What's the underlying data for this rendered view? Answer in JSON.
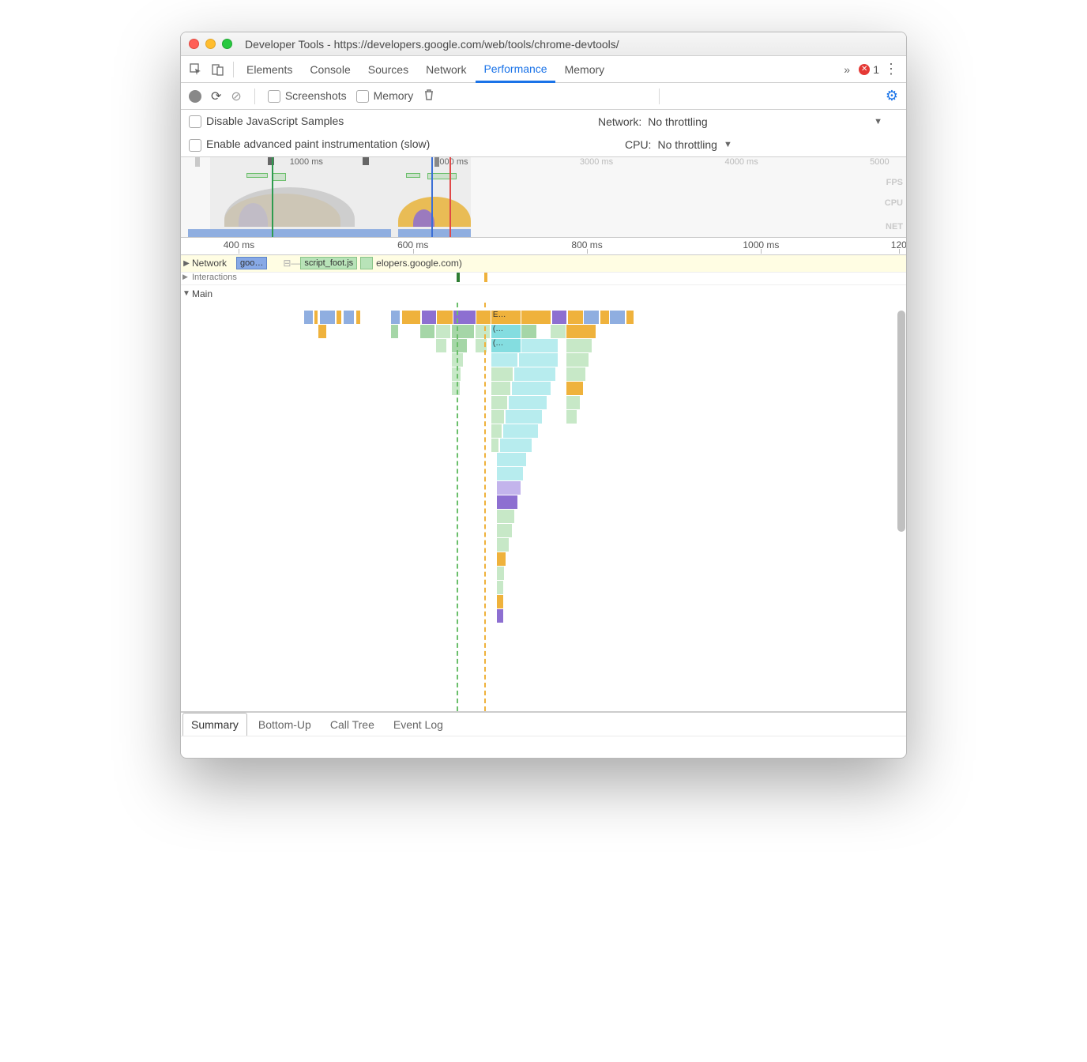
{
  "window": {
    "title": "Developer Tools - https://developers.google.com/web/tools/chrome-devtools/",
    "traffic_colors": {
      "close": "#ff5f57",
      "min": "#ffbd2e",
      "max": "#28c940"
    }
  },
  "topTabs": {
    "items": [
      "Elements",
      "Console",
      "Sources",
      "Network",
      "Performance",
      "Memory"
    ],
    "active": "Performance",
    "overflowGlyph": "»",
    "errorCount": "1",
    "errorIcon": "✕"
  },
  "perfToolbar": {
    "screenshotsLabel": "Screenshots",
    "memoryLabel": "Memory"
  },
  "settings": {
    "disableJs": "Disable JavaScript Samples",
    "enablePaint": "Enable advanced paint instrumentation (slow)",
    "networkLabel": "Network:",
    "networkValue": "No throttling",
    "cpuLabel": "CPU:",
    "cpuValue": "No throttling"
  },
  "overview": {
    "ticks": [
      {
        "label": "1000 ms",
        "pxPct": 15
      },
      {
        "label": "2000 ms",
        "pxPct": 35
      },
      {
        "label": "3000 ms",
        "pxPct": 55
      },
      {
        "label": "4000 ms",
        "pxPct": 75
      },
      {
        "label": "5000",
        "pxPct": 95
      }
    ],
    "handles": [
      2,
      12,
      25,
      35
    ],
    "rightLabels": [
      {
        "text": "FPS",
        "topPct": 26
      },
      {
        "text": "CPU",
        "topPct": 52
      },
      {
        "text": "NET",
        "topPct": 82
      }
    ],
    "netbars": [
      {
        "leftPct": 1,
        "widthPct": 28
      },
      {
        "leftPct": 30,
        "widthPct": 10
      }
    ],
    "vline_green": 12.5,
    "vline_blue": 34.5,
    "vline_red": 37,
    "dim": [
      {
        "leftPct": 0,
        "widthPct": 4
      },
      {
        "leftPct": 40,
        "widthPct": 60
      }
    ],
    "waves": [
      {
        "leftPct": 6,
        "widthPct": 16,
        "color": "#e8b33a",
        "heightPct": 42,
        "bottomPct": 12
      },
      {
        "leftPct": 8,
        "widthPct": 4,
        "color": "#8d6fd1",
        "heightPct": 30,
        "bottomPct": 12
      },
      {
        "leftPct": 30,
        "widthPct": 10,
        "color": "#e8b33a",
        "heightPct": 38,
        "bottomPct": 12
      },
      {
        "leftPct": 32,
        "widthPct": 3,
        "color": "#8d6fd1",
        "heightPct": 22,
        "bottomPct": 12
      },
      {
        "leftPct": 6,
        "widthPct": 18,
        "color": "#c8c8c8",
        "heightPct": 50,
        "bottomPct": 12
      }
    ],
    "fps": [
      {
        "leftPct": 9,
        "widthPct": 3,
        "h": 6
      },
      {
        "leftPct": 12.5,
        "widthPct": 2,
        "h": 10
      },
      {
        "leftPct": 31,
        "widthPct": 2,
        "h": 6
      },
      {
        "leftPct": 34,
        "widthPct": 4,
        "h": 8
      }
    ]
  },
  "ruler": {
    "ticks": [
      {
        "label": "400 ms",
        "pxPct": 8
      },
      {
        "label": "600 ms",
        "pxPct": 32
      },
      {
        "label": "800 ms",
        "pxPct": 56
      },
      {
        "label": "1000 ms",
        "pxPct": 80
      },
      {
        "label": "120",
        "pxPct": 99
      }
    ]
  },
  "networkRow": {
    "name": "Network",
    "chip1": "goo…",
    "chip2": "script_foot.js",
    "chipTail": "elopers.google.com)"
  },
  "interactionsLabel": "Interactions",
  "mainLabel": "Main",
  "vlines": {
    "greenDash": 38,
    "orangeDash": 41.8
  },
  "mainFlame": {
    "colors": {
      "yellow": "#efb23c",
      "purple": "#8d6fd1",
      "blue": "#8faee0",
      "green": "#a5d6a7",
      "cyan": "#84dde0",
      "lgreen": "#c7e8c7",
      "lcyan": "#b7ecee",
      "lpurple": "#c3b4ec"
    },
    "bars": [
      [
        {
          "l": 17,
          "w": 1.2,
          "c": "blue"
        },
        {
          "l": 18.4,
          "w": 0.5,
          "c": "yellow"
        },
        {
          "l": 19.2,
          "w": 2,
          "c": "blue"
        },
        {
          "l": 21.5,
          "w": 0.6,
          "c": "yellow"
        },
        {
          "l": 22.4,
          "w": 1.5,
          "c": "blue"
        },
        {
          "l": 24.2,
          "w": 0.5,
          "c": "yellow"
        },
        {
          "l": 29,
          "w": 1.2,
          "c": "blue"
        },
        {
          "l": 30.5,
          "w": 2.5,
          "c": "yellow"
        },
        {
          "l": 33.2,
          "w": 2,
          "c": "purple"
        },
        {
          "l": 35.3,
          "w": 2.2,
          "c": "yellow"
        },
        {
          "l": 37.6,
          "w": 3,
          "c": "purple"
        },
        {
          "l": 40.7,
          "w": 2,
          "c": "yellow"
        },
        {
          "l": 42.8,
          "w": 4,
          "c": "yellow",
          "t": "E…"
        },
        {
          "l": 47,
          "w": 4,
          "c": "yellow"
        },
        {
          "l": 51.2,
          "w": 2,
          "c": "purple"
        },
        {
          "l": 53.4,
          "w": 2,
          "c": "yellow"
        },
        {
          "l": 55.6,
          "w": 2,
          "c": "blue"
        },
        {
          "l": 57.8,
          "w": 1.2,
          "c": "yellow"
        },
        {
          "l": 59.2,
          "w": 2,
          "c": "blue"
        },
        {
          "l": 61.4,
          "w": 1,
          "c": "yellow"
        }
      ],
      [
        {
          "l": 19,
          "w": 1,
          "c": "yellow"
        },
        {
          "l": 29,
          "w": 1,
          "c": "green"
        },
        {
          "l": 33,
          "w": 2,
          "c": "green"
        },
        {
          "l": 35.2,
          "w": 2,
          "c": "lgreen"
        },
        {
          "l": 37.4,
          "w": 3,
          "c": "green"
        },
        {
          "l": 40.6,
          "w": 2,
          "c": "lgreen"
        },
        {
          "l": 42.8,
          "w": 4,
          "c": "cyan",
          "t": "(…"
        },
        {
          "l": 47,
          "w": 2,
          "c": "green"
        },
        {
          "l": 51,
          "w": 2,
          "c": "lgreen"
        },
        {
          "l": 53.2,
          "w": 4,
          "c": "yellow"
        }
      ],
      [
        {
          "l": 35.2,
          "w": 1.4,
          "c": "lgreen"
        },
        {
          "l": 37.4,
          "w": 2,
          "c": "green"
        },
        {
          "l": 40.6,
          "w": 1.6,
          "c": "lgreen"
        },
        {
          "l": 42.8,
          "w": 4,
          "c": "cyan",
          "t": "(…"
        },
        {
          "l": 47,
          "w": 5,
          "c": "lcyan"
        },
        {
          "l": 53.2,
          "w": 3.4,
          "c": "lgreen"
        }
      ],
      [
        {
          "l": 37.4,
          "w": 1.5,
          "c": "lgreen"
        },
        {
          "l": 42.8,
          "w": 3.6,
          "c": "lcyan"
        },
        {
          "l": 46.6,
          "w": 5.4,
          "c": "lcyan"
        },
        {
          "l": 53.2,
          "w": 3,
          "c": "lgreen"
        }
      ],
      [
        {
          "l": 37.4,
          "w": 1.2,
          "c": "lgreen"
        },
        {
          "l": 42.8,
          "w": 3,
          "c": "lgreen"
        },
        {
          "l": 46,
          "w": 5.6,
          "c": "lcyan"
        },
        {
          "l": 53.2,
          "w": 2.6,
          "c": "lgreen"
        }
      ],
      [
        {
          "l": 37.4,
          "w": 1,
          "c": "lgreen"
        },
        {
          "l": 42.8,
          "w": 2.6,
          "c": "lgreen"
        },
        {
          "l": 45.6,
          "w": 5.4,
          "c": "lcyan"
        },
        {
          "l": 53.2,
          "w": 2.2,
          "c": "yellow"
        }
      ],
      [
        {
          "l": 42.8,
          "w": 2.2,
          "c": "lgreen"
        },
        {
          "l": 45.2,
          "w": 5.2,
          "c": "lcyan"
        },
        {
          "l": 53.2,
          "w": 1.8,
          "c": "lgreen"
        }
      ],
      [
        {
          "l": 42.8,
          "w": 1.8,
          "c": "lgreen"
        },
        {
          "l": 44.8,
          "w": 5,
          "c": "lcyan"
        },
        {
          "l": 53.2,
          "w": 1.4,
          "c": "lgreen"
        }
      ],
      [
        {
          "l": 42.8,
          "w": 1.4,
          "c": "lgreen"
        },
        {
          "l": 44.4,
          "w": 4.8,
          "c": "lcyan"
        }
      ],
      [
        {
          "l": 42.8,
          "w": 1,
          "c": "lgreen"
        },
        {
          "l": 44,
          "w": 4.4,
          "c": "lcyan"
        }
      ],
      [
        {
          "l": 43.6,
          "w": 4,
          "c": "lcyan"
        }
      ],
      [
        {
          "l": 43.6,
          "w": 3.6,
          "c": "lcyan"
        }
      ],
      [
        {
          "l": 43.6,
          "w": 3.2,
          "c": "lpurple"
        }
      ],
      [
        {
          "l": 43.6,
          "w": 2.8,
          "c": "purple"
        }
      ],
      [
        {
          "l": 43.6,
          "w": 2.4,
          "c": "lgreen"
        }
      ],
      [
        {
          "l": 43.6,
          "w": 2,
          "c": "lgreen"
        }
      ],
      [
        {
          "l": 43.6,
          "w": 1.6,
          "c": "lgreen"
        }
      ],
      [
        {
          "l": 43.6,
          "w": 1.2,
          "c": "yellow"
        }
      ],
      [
        {
          "l": 43.6,
          "w": 1,
          "c": "lgreen"
        }
      ],
      [
        {
          "l": 43.6,
          "w": 0.8,
          "c": "lgreen"
        }
      ],
      [
        {
          "l": 43.6,
          "w": 0.8,
          "c": "yellow"
        }
      ],
      [
        {
          "l": 43.6,
          "w": 0.8,
          "c": "purple"
        }
      ]
    ]
  },
  "bottomTabs": {
    "items": [
      "Summary",
      "Bottom-Up",
      "Call Tree",
      "Event Log"
    ],
    "active": "Summary"
  }
}
